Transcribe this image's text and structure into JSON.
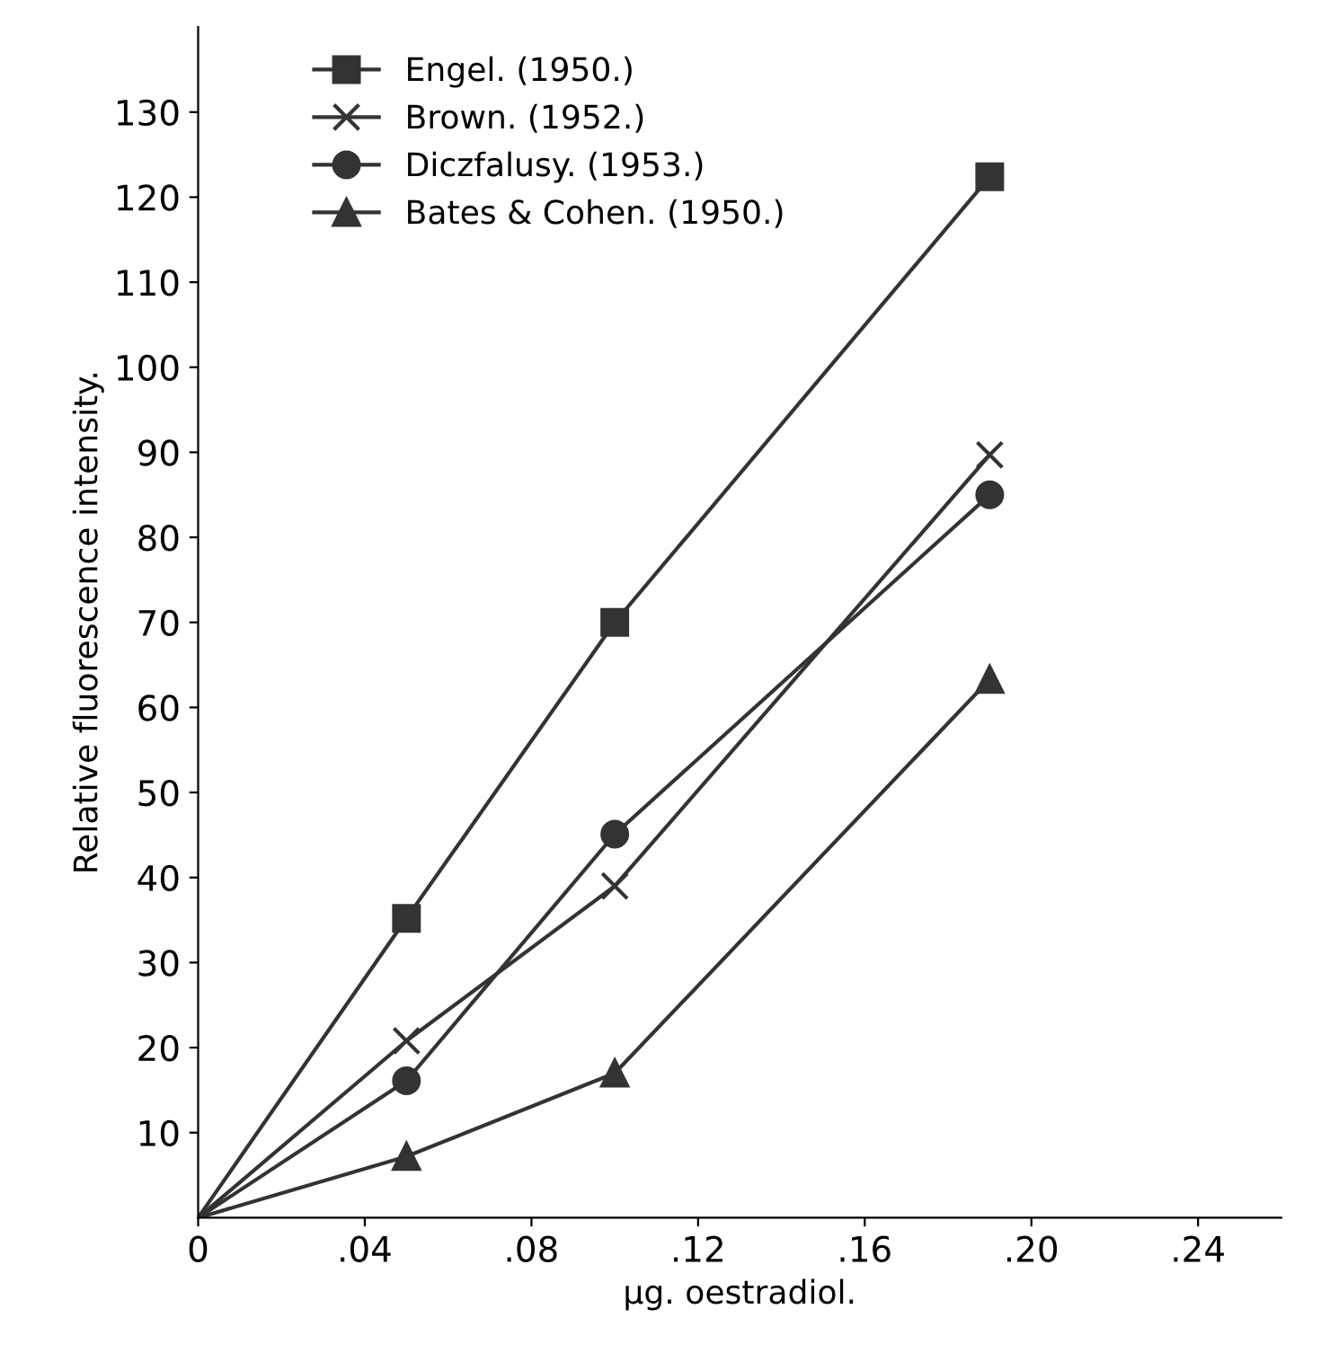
{
  "chart_data": {
    "type": "line",
    "xlabel": "µg. oestradiol.",
    "ylabel": "Relative fluorescence intensity.",
    "x": [
      0,
      0.05,
      0.1,
      0.19
    ],
    "series": [
      {
        "name": "Engel. (1950.)",
        "color": "#333333",
        "marker": "square",
        "values": [
          0,
          35.2,
          70.0,
          122.4
        ]
      },
      {
        "name": "Brown. (1952.)",
        "color": "#333333",
        "marker": "cross",
        "values": [
          0,
          20.8,
          39.0,
          89.7
        ]
      },
      {
        "name": "Diczfalusy. (1953.)",
        "color": "#333333",
        "marker": "circle",
        "values": [
          0,
          16.1,
          45.1,
          85.0
        ]
      },
      {
        "name": "Bates & Cohen. (1950.)",
        "color": "#333333",
        "marker": "triangle",
        "values": [
          0,
          7.2,
          17.0,
          63.3
        ]
      }
    ],
    "xlim": [
      0,
      0.26
    ],
    "ylim": [
      0,
      140
    ],
    "xticks": [
      0,
      {
        "value": 0.04,
        "label": ".04"
      },
      {
        "value": 0.08,
        "label": ".08"
      },
      {
        "value": 0.12,
        "label": ".12"
      },
      {
        "value": 0.16,
        "label": ".16"
      },
      {
        "value": 0.2,
        "label": ".20"
      },
      {
        "value": 0.24,
        "label": ".24"
      }
    ],
    "yticks": [
      10,
      20,
      30,
      40,
      50,
      60,
      70,
      80,
      90,
      100,
      110,
      120,
      130
    ],
    "grid": false,
    "legend": "top left",
    "line_style": "solid"
  }
}
